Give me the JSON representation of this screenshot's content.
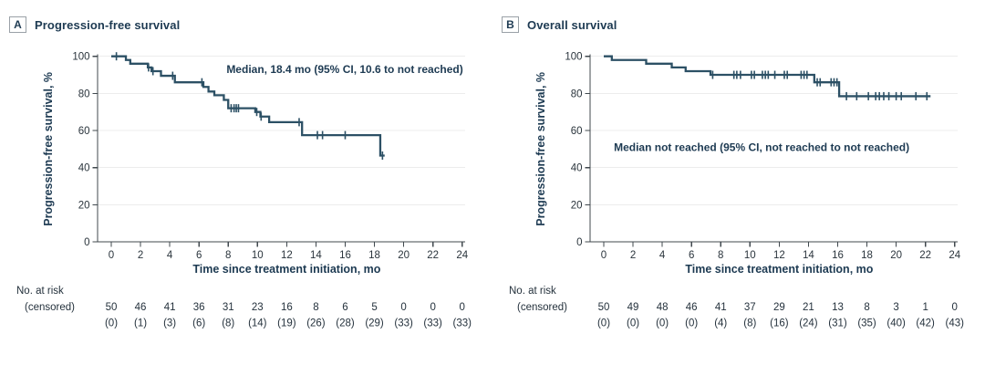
{
  "colors": {
    "curve": "#2c5065",
    "navy_text": "#1d3a52",
    "tick_text": "#2a343c",
    "axis": "#40484e",
    "gridline": "#ececec",
    "panel_box_border": "#9aa1a7"
  },
  "chart_data": [
    {
      "type": "line",
      "subtype": "kaplan_meier_step",
      "panel_label": "A",
      "title": "Progression-free survival",
      "xlabel": "Time since treatment initiation, mo",
      "ylabel": "Progression-free survival, %",
      "xlim": [
        0,
        24
      ],
      "ylim": [
        0,
        100
      ],
      "xticks": [
        0,
        2,
        4,
        6,
        8,
        10,
        12,
        14,
        16,
        18,
        20,
        22,
        24
      ],
      "yticks": [
        0,
        20,
        40,
        60,
        80,
        100
      ],
      "grid": "horizontal",
      "legend": "none",
      "annotation": {
        "text": "Median, 18.4 mo (95% CI, 10.6 to not reached)",
        "x": 24,
        "y": 91,
        "anchor": "end"
      },
      "series": [
        {
          "name": "Progression-free survival",
          "steps": [
            [
              0,
              100
            ],
            [
              1.0,
              98
            ],
            [
              1.3,
              96
            ],
            [
              2.5,
              94
            ],
            [
              2.75,
              92
            ],
            [
              3.4,
              89.5
            ],
            [
              4.35,
              86
            ],
            [
              6.3,
              83.5
            ],
            [
              6.65,
              81
            ],
            [
              7.05,
              79
            ],
            [
              7.7,
              76.5
            ],
            [
              8.0,
              72
            ],
            [
              9.85,
              70
            ],
            [
              10.2,
              67.5
            ],
            [
              10.8,
              64.5
            ],
            [
              13.05,
              57.5
            ],
            [
              18.4,
              46.5
            ]
          ],
          "end_time": 18.7,
          "censor_marks": [
            [
              0.35,
              100
            ],
            [
              2.55,
              94
            ],
            [
              2.85,
              92
            ],
            [
              4.2,
              89.5
            ],
            [
              6.2,
              86
            ],
            [
              8.2,
              72
            ],
            [
              8.4,
              72
            ],
            [
              8.55,
              72
            ],
            [
              8.7,
              72
            ],
            [
              9.95,
              70
            ],
            [
              10.25,
              67.5
            ],
            [
              12.85,
              64.5
            ],
            [
              14.1,
              57.5
            ],
            [
              14.45,
              57.5
            ],
            [
              16.0,
              57.5
            ],
            [
              18.55,
              46.5
            ]
          ]
        }
      ],
      "at_risk": {
        "label": "No. at risk",
        "sublabel": "(censored)",
        "times": [
          0,
          2,
          4,
          6,
          8,
          10,
          12,
          14,
          16,
          18,
          20,
          22,
          24
        ],
        "n": [
          "50",
          "46",
          "41",
          "36",
          "31",
          "23",
          "16",
          "8",
          "6",
          "5",
          "0",
          "0",
          "0"
        ],
        "censored": [
          "(0)",
          "(1)",
          "(3)",
          "(6)",
          "(8)",
          "(14)",
          "(19)",
          "(26)",
          "(28)",
          "(29)",
          "(33)",
          "(33)",
          "(33)"
        ]
      }
    },
    {
      "type": "line",
      "subtype": "kaplan_meier_step",
      "panel_label": "B",
      "title": "Overall survival",
      "xlabel": "Time since treatment initiation, mo",
      "ylabel": "Progression-free survival, %",
      "xlim": [
        0,
        24
      ],
      "ylim": [
        0,
        100
      ],
      "xticks": [
        0,
        2,
        4,
        6,
        8,
        10,
        12,
        14,
        16,
        18,
        20,
        22,
        24
      ],
      "yticks": [
        0,
        20,
        40,
        60,
        80,
        100
      ],
      "grid": "horizontal",
      "legend": "none",
      "annotation": {
        "text": "Median not reached (95% CI, not reached to not reached)",
        "x": 10.8,
        "y": 49,
        "anchor": "middle"
      },
      "series": [
        {
          "name": "Overall survival",
          "steps": [
            [
              0,
              100
            ],
            [
              0.55,
              98
            ],
            [
              2.9,
              96
            ],
            [
              4.65,
              94
            ],
            [
              5.6,
              92
            ],
            [
              7.3,
              90
            ],
            [
              14.4,
              86
            ],
            [
              16.1,
              78.5
            ]
          ],
          "end_time": 22.35,
          "censor_marks": [
            [
              7.45,
              90
            ],
            [
              8.9,
              90
            ],
            [
              9.1,
              90
            ],
            [
              9.35,
              90
            ],
            [
              10.1,
              90
            ],
            [
              10.3,
              90
            ],
            [
              10.85,
              90
            ],
            [
              11.05,
              90
            ],
            [
              11.25,
              90
            ],
            [
              11.7,
              90
            ],
            [
              12.35,
              90
            ],
            [
              12.55,
              90
            ],
            [
              13.5,
              90
            ],
            [
              13.7,
              90
            ],
            [
              13.9,
              90
            ],
            [
              14.6,
              86
            ],
            [
              14.8,
              86
            ],
            [
              15.55,
              86
            ],
            [
              15.75,
              86
            ],
            [
              15.95,
              86
            ],
            [
              16.6,
              78.5
            ],
            [
              17.3,
              78.5
            ],
            [
              18.1,
              78.5
            ],
            [
              18.6,
              78.5
            ],
            [
              18.85,
              78.5
            ],
            [
              19.15,
              78.5
            ],
            [
              19.5,
              78.5
            ],
            [
              20.0,
              78.5
            ],
            [
              20.35,
              78.5
            ],
            [
              21.35,
              78.5
            ],
            [
              22.1,
              78.5
            ]
          ]
        }
      ],
      "at_risk": {
        "label": "No. at risk",
        "sublabel": "(censored)",
        "times": [
          0,
          2,
          4,
          6,
          8,
          10,
          12,
          14,
          16,
          18,
          20,
          22,
          24
        ],
        "n": [
          "50",
          "49",
          "48",
          "46",
          "41",
          "37",
          "29",
          "21",
          "13",
          "8",
          "3",
          "1",
          "0"
        ],
        "censored": [
          "(0)",
          "(0)",
          "(0)",
          "(0)",
          "(4)",
          "(8)",
          "(16)",
          "(24)",
          "(31)",
          "(35)",
          "(40)",
          "(42)",
          "(43)"
        ]
      }
    }
  ]
}
